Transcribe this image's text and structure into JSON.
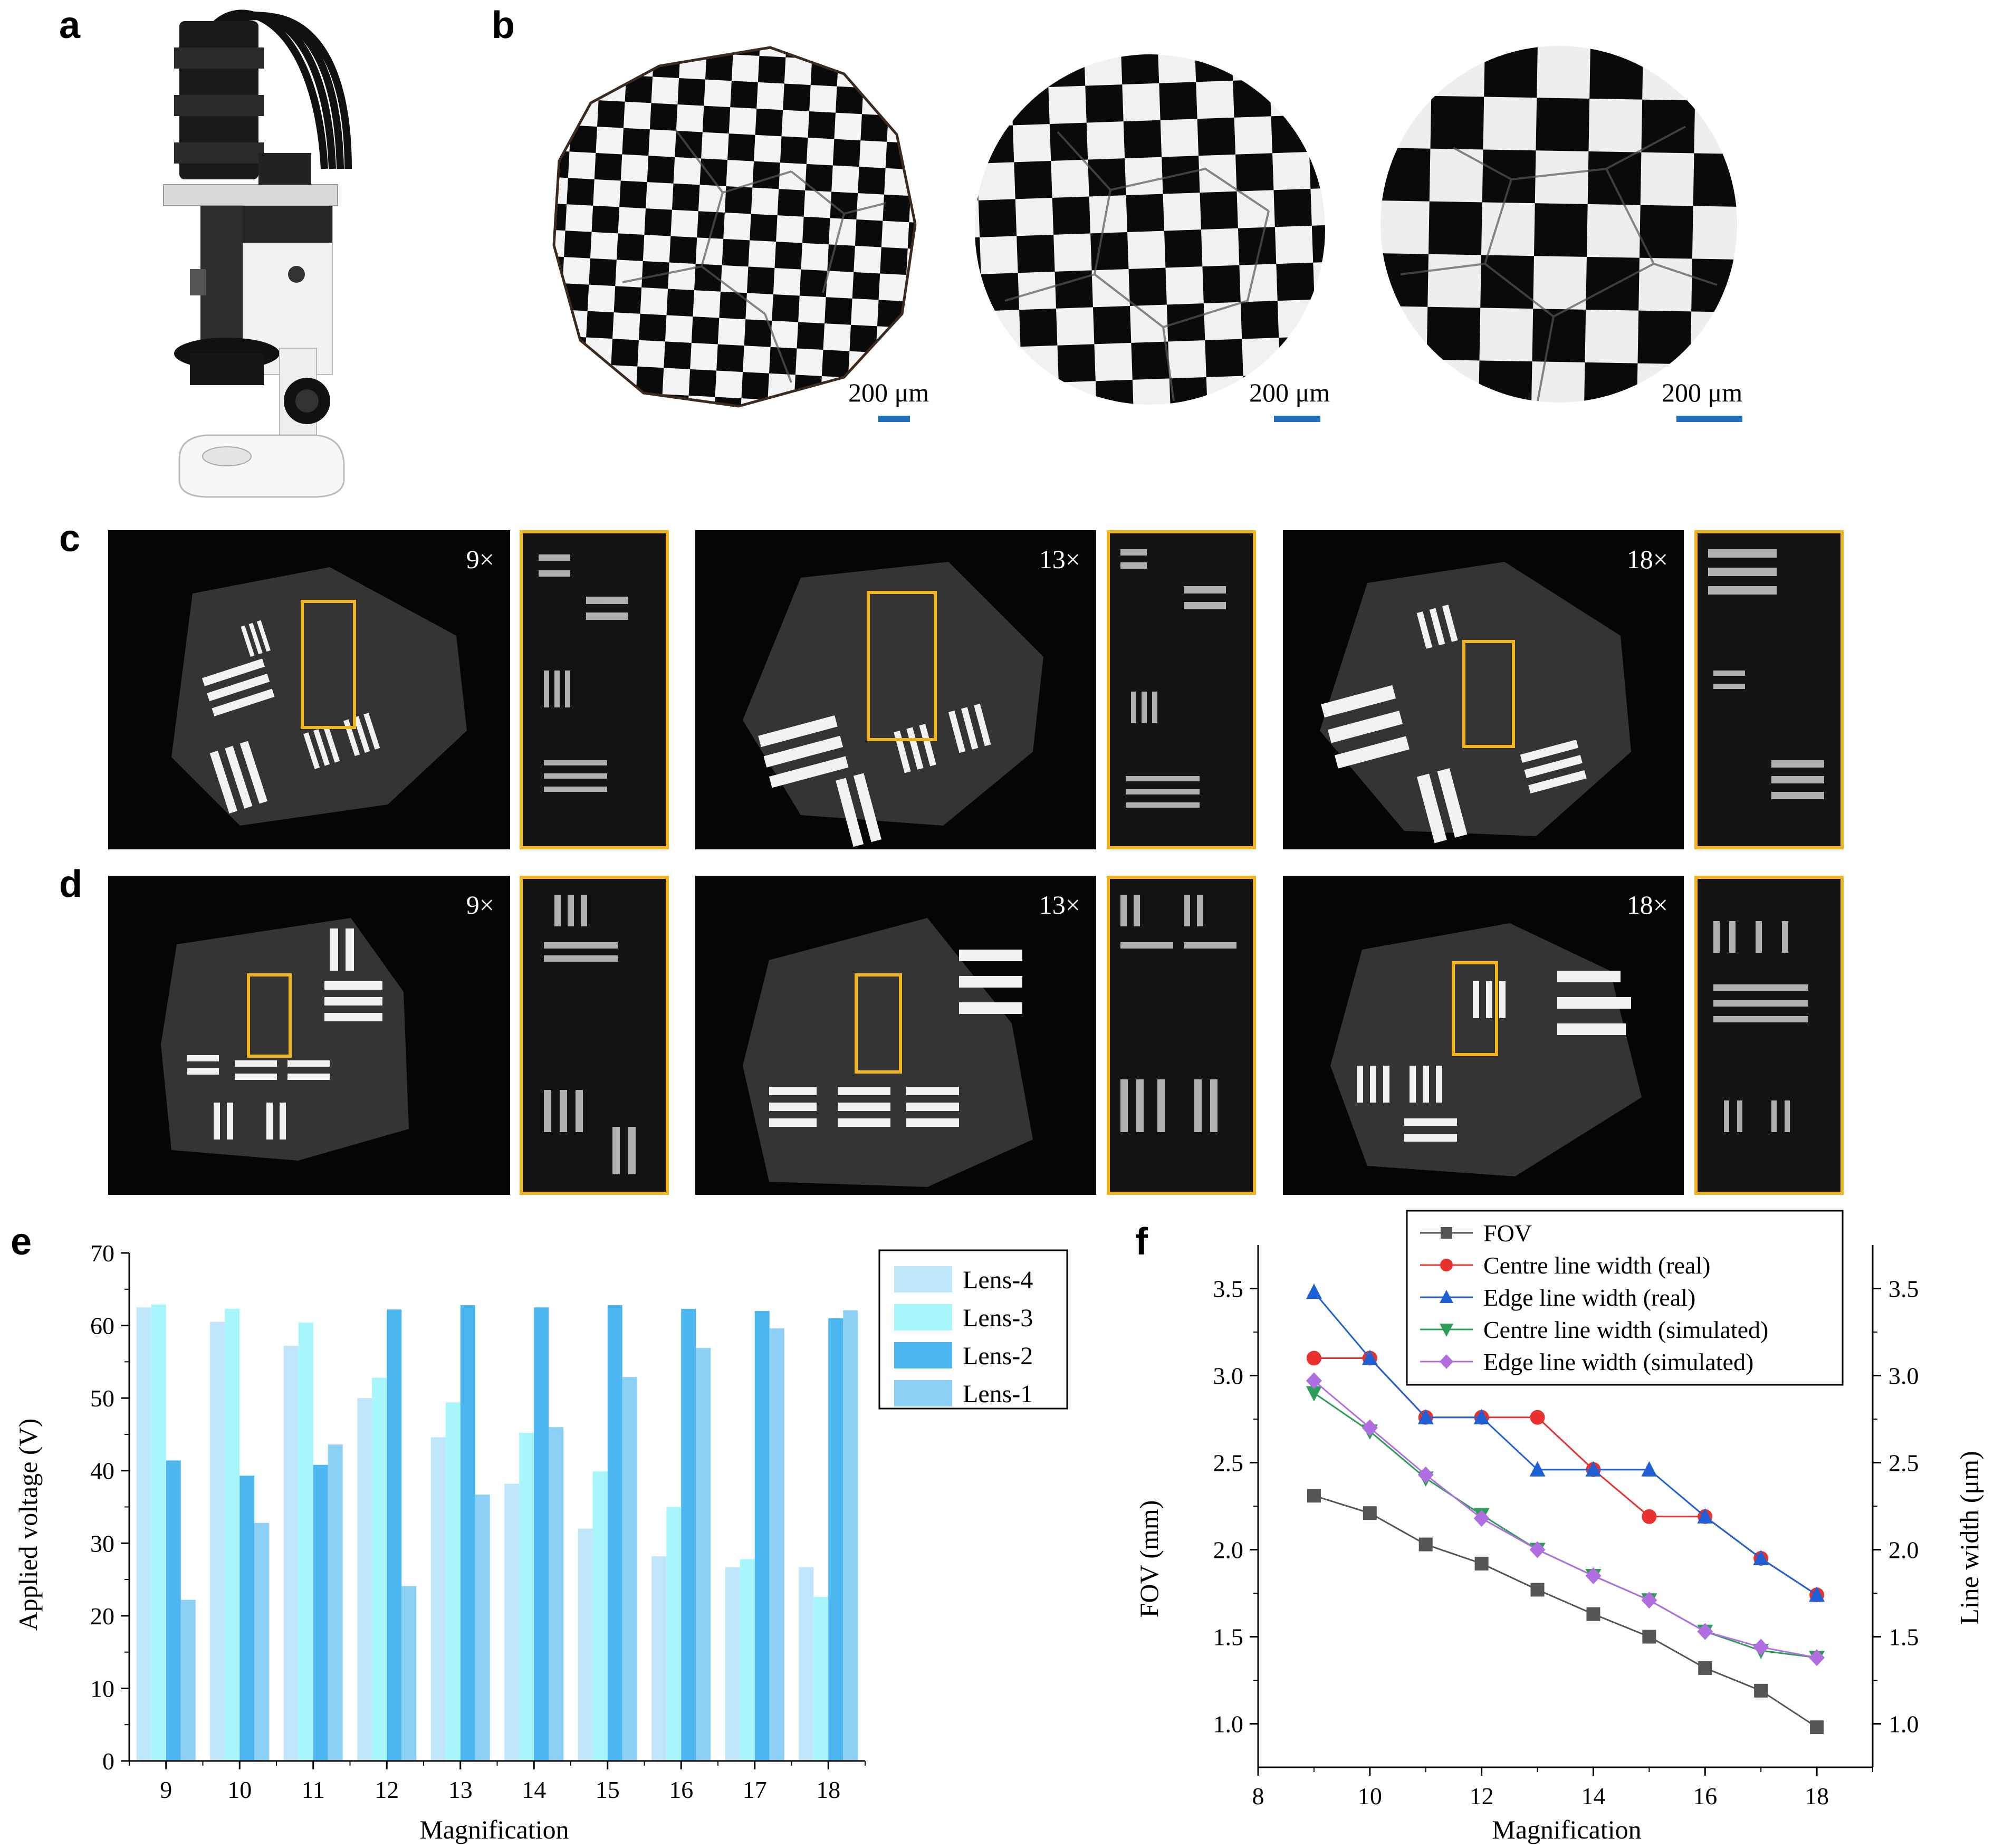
{
  "panels": {
    "a": "a",
    "b": "b",
    "c": "c",
    "d": "d",
    "e": "e",
    "f": "f"
  },
  "panel_b": {
    "scalebars": [
      "200 μm",
      "200 μm",
      "200 μm"
    ]
  },
  "panel_c": {
    "magnifications": [
      "9×",
      "13×",
      "18×"
    ]
  },
  "panel_d": {
    "magnifications": [
      "9×",
      "13×",
      "18×"
    ]
  },
  "colors": {
    "lens4": "#bfe6fb",
    "lens3": "#a6f6fb",
    "lens2": "#4cb6f0",
    "lens1": "#8cd0f5",
    "fov": "#555555",
    "centre_real": "#e8302e",
    "edge_real": "#1f60d6",
    "centre_sim": "#2e9e56",
    "edge_sim": "#b06fe0",
    "roi": "#f0b521",
    "scalebar": "#1f6fbf"
  },
  "chart_data": [
    {
      "type": "bar",
      "panel": "e",
      "xlabel": "Magnification",
      "ylabel": "Applied voltage (V)",
      "categories": [
        "9",
        "10",
        "11",
        "12",
        "13",
        "14",
        "15",
        "16",
        "17",
        "18"
      ],
      "ylim": [
        0,
        70
      ],
      "yticks": [
        "0",
        "10",
        "20",
        "30",
        "40",
        "50",
        "60",
        "70"
      ],
      "legend_position": "top-right",
      "series": [
        {
          "name": "Lens-4",
          "values": [
            62.5,
            60.5,
            57.2,
            50.0,
            44.6,
            38.2,
            32.0,
            28.2,
            26.7,
            26.7
          ]
        },
        {
          "name": "Lens-3",
          "values": [
            62.9,
            62.3,
            60.4,
            52.8,
            49.4,
            45.2,
            39.9,
            35.0,
            27.8,
            22.6
          ]
        },
        {
          "name": "Lens-2",
          "values": [
            41.4,
            39.3,
            40.8,
            62.2,
            62.8,
            62.5,
            62.8,
            62.3,
            62.0,
            61.0
          ]
        },
        {
          "name": "Lens-1",
          "values": [
            22.2,
            32.8,
            43.6,
            24.1,
            36.7,
            46.0,
            52.9,
            56.9,
            59.6,
            62.1
          ]
        }
      ]
    },
    {
      "type": "line",
      "panel": "f",
      "xlabel": "Magnification",
      "ylabel": "FOV (mm)",
      "y2label": "Line width (μm)",
      "xlim": [
        8,
        19
      ],
      "xticks": [
        "8",
        "10",
        "12",
        "14",
        "16",
        "18"
      ],
      "ylim": [
        0.75,
        3.75
      ],
      "yticks": [
        "1.0",
        "1.5",
        "2.0",
        "2.5",
        "3.0",
        "3.5"
      ],
      "y2ticks": [
        "1.0",
        "1.5",
        "2.0",
        "2.5",
        "3.0",
        "3.5"
      ],
      "legend_position": "top",
      "x": [
        9,
        10,
        11,
        12,
        13,
        14,
        15,
        16,
        17,
        18
      ],
      "series": [
        {
          "name": "FOV",
          "marker": "square",
          "axis": "left",
          "values": [
            2.31,
            2.21,
            2.03,
            1.92,
            1.77,
            1.63,
            1.5,
            1.32,
            1.19,
            0.98
          ]
        },
        {
          "name": "Centre line width (real)",
          "marker": "circle",
          "axis": "right",
          "values": [
            3.1,
            3.1,
            2.76,
            2.76,
            2.76,
            2.46,
            2.19,
            2.19,
            1.95,
            1.74
          ]
        },
        {
          "name": "Edge line width (real)",
          "marker": "triangle-up",
          "axis": "right",
          "values": [
            3.48,
            3.1,
            2.76,
            2.76,
            2.46,
            2.46,
            2.46,
            2.19,
            1.95,
            1.74
          ]
        },
        {
          "name": "Centre line width (simulated)",
          "marker": "triangle-down",
          "axis": "right",
          "values": [
            2.9,
            2.68,
            2.41,
            2.2,
            2.0,
            1.85,
            1.71,
            1.53,
            1.42,
            1.38
          ]
        },
        {
          "name": "Edge line width (simulated)",
          "marker": "diamond",
          "axis": "right",
          "values": [
            2.97,
            2.7,
            2.43,
            2.18,
            2.0,
            1.85,
            1.71,
            1.53,
            1.44,
            1.38
          ]
        }
      ]
    }
  ]
}
